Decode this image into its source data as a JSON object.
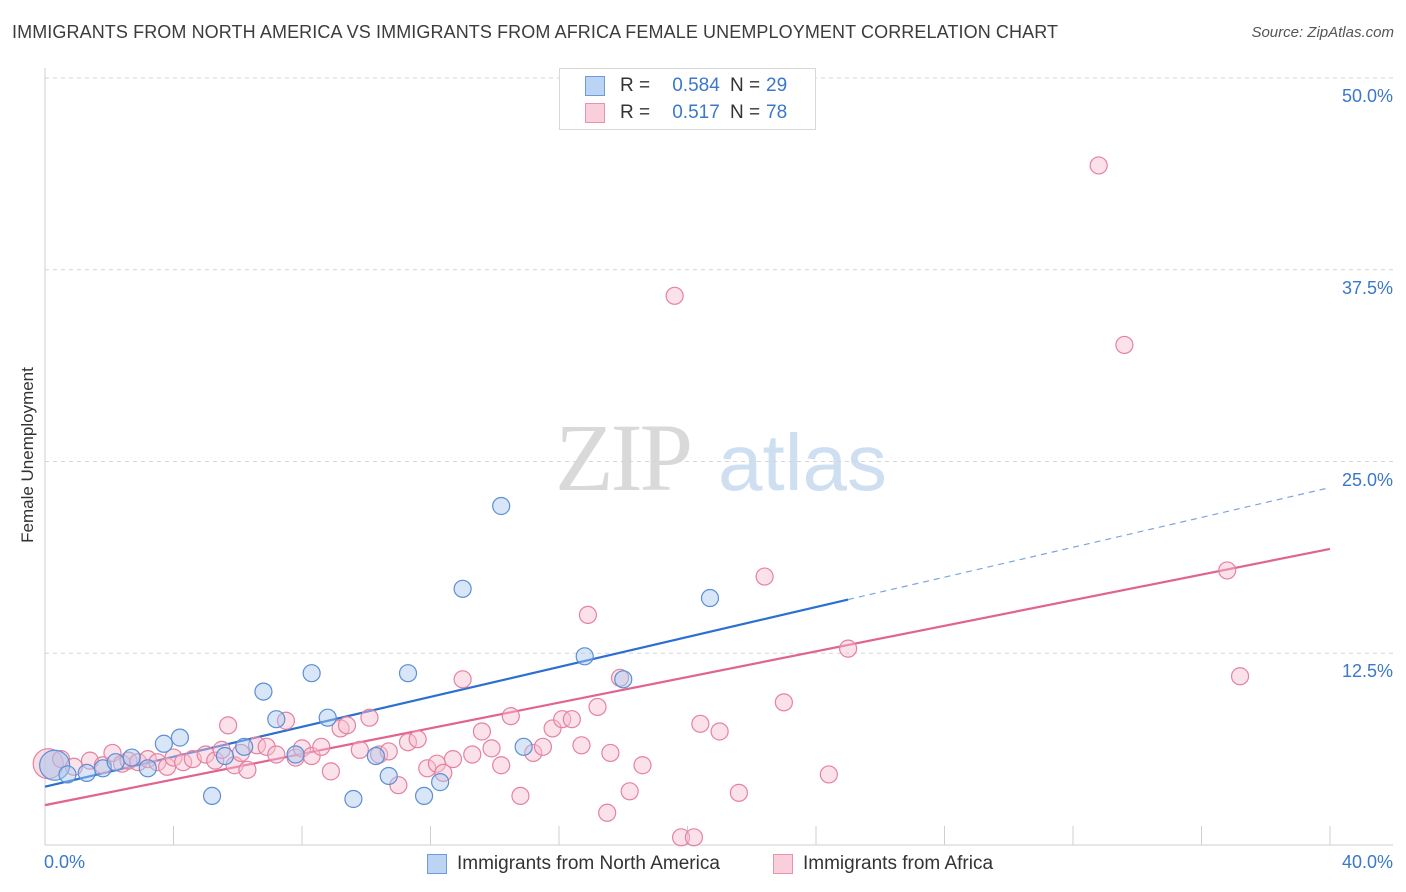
{
  "title": "IMMIGRANTS FROM NORTH AMERICA VS IMMIGRANTS FROM AFRICA FEMALE UNEMPLOYMENT CORRELATION CHART",
  "source": "Source: ZipAtlas.com",
  "watermark": {
    "zip": "ZIP",
    "atlas": "atlas"
  },
  "colors": {
    "blue_fill": "#a9c7ef",
    "blue_stroke": "#5b8fd6",
    "blue_line": "#2a6fd1",
    "pink_fill": "#f6bfd0",
    "pink_stroke": "#e5829f",
    "pink_line": "#e06392",
    "axis_text": "#3a78c9",
    "grid": "#d5d5d5"
  },
  "legend": {
    "rows": [
      {
        "r_label": "R =",
        "r_value": "0.584",
        "n_label": "N =",
        "n_value": "29",
        "series": "blue"
      },
      {
        "r_label": "R =",
        "r_value": "0.517",
        "n_label": "N =",
        "n_value": "78",
        "series": "pink"
      }
    ]
  },
  "chart_data": {
    "type": "scatter",
    "ylabel": "Female Unemployment",
    "xlim": [
      0,
      40
    ],
    "ylim": [
      0,
      50
    ],
    "x_tick_labels": [
      "0.0%",
      "40.0%"
    ],
    "y_ticks": [
      {
        "value": 12.5,
        "label": "12.5%"
      },
      {
        "value": 25.0,
        "label": "25.0%"
      },
      {
        "value": 37.5,
        "label": "37.5%"
      },
      {
        "value": 50.0,
        "label": "50.0%"
      }
    ],
    "grid": "dashed horizontal",
    "series": [
      {
        "name": "Immigrants from North America",
        "color": "blue",
        "r": 0.584,
        "n": 29,
        "trend": {
          "x0": 0,
          "y0": 3.8,
          "x1": 25,
          "y1": 16.0,
          "dashed_to_x": 40,
          "dashed_to_y": 23.3
        },
        "points": [
          [
            0.3,
            5.2,
            "large"
          ],
          [
            0.7,
            4.6
          ],
          [
            1.3,
            4.7
          ],
          [
            1.8,
            5.0
          ],
          [
            2.2,
            5.4
          ],
          [
            2.7,
            5.7
          ],
          [
            3.2,
            5.0
          ],
          [
            3.7,
            6.6
          ],
          [
            4.2,
            7.0
          ],
          [
            5.2,
            3.2
          ],
          [
            5.6,
            5.8
          ],
          [
            6.2,
            6.4
          ],
          [
            6.8,
            10.0
          ],
          [
            7.2,
            8.2
          ],
          [
            7.8,
            5.9
          ],
          [
            8.3,
            11.2
          ],
          [
            8.8,
            8.3
          ],
          [
            9.6,
            3.0
          ],
          [
            10.3,
            5.8
          ],
          [
            10.7,
            4.5
          ],
          [
            11.3,
            11.2
          ],
          [
            11.8,
            3.2
          ],
          [
            12.3,
            4.1
          ],
          [
            13.0,
            16.7
          ],
          [
            14.2,
            22.1
          ],
          [
            14.9,
            6.4
          ],
          [
            16.8,
            12.3
          ],
          [
            18.0,
            10.8
          ],
          [
            20.7,
            16.1
          ]
        ]
      },
      {
        "name": "Immigrants from Africa",
        "color": "pink",
        "r": 0.517,
        "n": 78,
        "trend": {
          "x0": 0,
          "y0": 2.6,
          "x1": 40,
          "y1": 19.3
        },
        "points": [
          [
            0.1,
            5.3,
            "large"
          ],
          [
            0.5,
            5.6
          ],
          [
            0.9,
            5.1
          ],
          [
            1.4,
            5.5
          ],
          [
            1.8,
            5.2
          ],
          [
            2.1,
            6.0
          ],
          [
            2.4,
            5.3
          ],
          [
            2.6,
            5.5
          ],
          [
            2.9,
            5.4
          ],
          [
            3.2,
            5.6
          ],
          [
            3.5,
            5.4
          ],
          [
            3.8,
            5.1
          ],
          [
            4.0,
            5.7
          ],
          [
            4.3,
            5.4
          ],
          [
            4.6,
            5.6
          ],
          [
            5.0,
            5.9
          ],
          [
            5.3,
            5.5
          ],
          [
            5.5,
            6.2
          ],
          [
            5.7,
            7.8
          ],
          [
            5.9,
            5.2
          ],
          [
            6.1,
            6.0
          ],
          [
            6.3,
            4.9
          ],
          [
            6.6,
            6.5
          ],
          [
            6.9,
            6.4
          ],
          [
            7.2,
            5.9
          ],
          [
            7.5,
            8.1
          ],
          [
            7.8,
            5.7
          ],
          [
            8.0,
            6.3
          ],
          [
            8.3,
            5.8
          ],
          [
            8.6,
            6.4
          ],
          [
            8.9,
            4.8
          ],
          [
            9.2,
            7.6
          ],
          [
            9.4,
            7.8
          ],
          [
            9.8,
            6.2
          ],
          [
            10.1,
            8.3
          ],
          [
            10.4,
            5.9
          ],
          [
            10.7,
            6.1
          ],
          [
            11.0,
            3.9
          ],
          [
            11.3,
            6.7
          ],
          [
            11.6,
            6.9
          ],
          [
            11.9,
            5.0
          ],
          [
            12.2,
            5.3
          ],
          [
            12.4,
            4.7
          ],
          [
            12.7,
            5.6
          ],
          [
            13.0,
            10.8
          ],
          [
            13.3,
            5.9
          ],
          [
            13.6,
            7.4
          ],
          [
            13.9,
            6.3
          ],
          [
            14.2,
            5.2
          ],
          [
            14.5,
            8.4
          ],
          [
            14.8,
            3.2
          ],
          [
            15.2,
            6.0
          ],
          [
            15.5,
            6.4
          ],
          [
            15.8,
            7.6
          ],
          [
            16.1,
            8.2
          ],
          [
            16.4,
            8.2
          ],
          [
            16.7,
            6.5
          ],
          [
            16.9,
            15.0
          ],
          [
            17.2,
            9.0
          ],
          [
            17.5,
            2.1
          ],
          [
            17.6,
            6.0
          ],
          [
            17.9,
            10.9
          ],
          [
            18.2,
            3.5
          ],
          [
            18.6,
            5.2
          ],
          [
            19.6,
            35.8
          ],
          [
            19.8,
            0.5
          ],
          [
            20.2,
            0.5
          ],
          [
            20.4,
            7.9
          ],
          [
            21.0,
            7.4
          ],
          [
            21.6,
            3.4
          ],
          [
            22.4,
            17.5
          ],
          [
            23.0,
            9.3
          ],
          [
            24.4,
            4.6
          ],
          [
            25.0,
            12.8
          ],
          [
            32.8,
            44.3
          ],
          [
            33.6,
            32.6
          ],
          [
            36.8,
            17.9
          ],
          [
            37.2,
            11.0
          ]
        ]
      }
    ]
  }
}
